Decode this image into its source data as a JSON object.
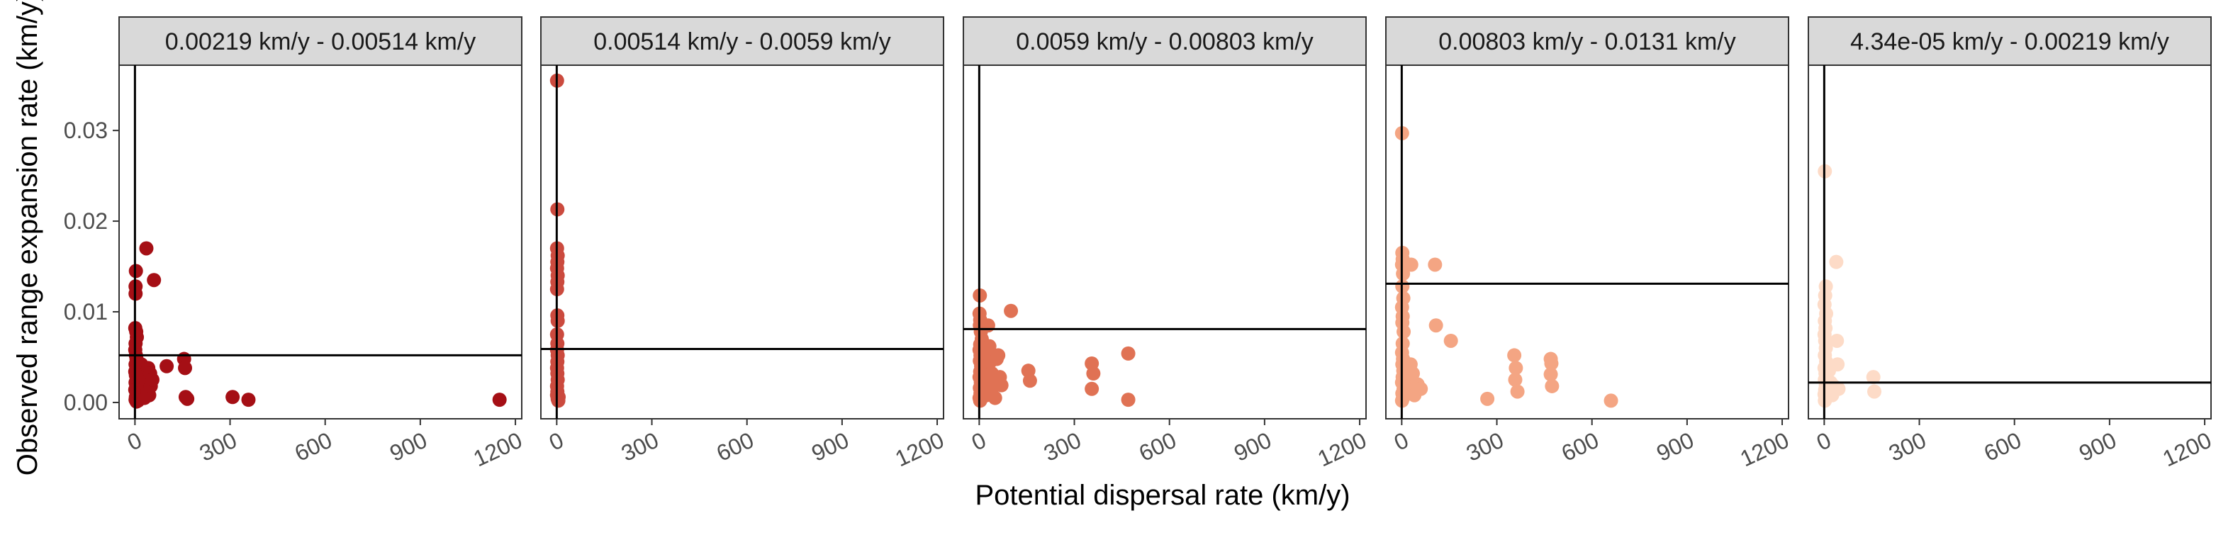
{
  "chart_data": {
    "type": "scatter",
    "xlabel": "Potential dispersal rate (km/y)",
    "ylabel": "Observed range expansion rate (km/y)",
    "x_ticks": [
      0,
      300,
      600,
      900,
      1200
    ],
    "y_ticks": [
      0.0,
      0.01,
      0.02,
      0.03
    ],
    "y_tick_labels": [
      "0.00",
      "0.01",
      "0.02",
      "0.03"
    ],
    "xlim": [
      -50,
      1220
    ],
    "ylim": [
      -0.0018,
      0.0372
    ],
    "grid": false,
    "vertical_reference_line_x": 0,
    "panels": [
      {
        "label": "0.00219 km/y - 0.00514 km/y",
        "color": "#A50F15",
        "hline": 0.0052,
        "points": [
          [
            3,
            0.0145
          ],
          [
            2,
            0.0128
          ],
          [
            2,
            0.012
          ],
          [
            1,
            0.0082
          ],
          [
            4,
            0.0078
          ],
          [
            6,
            0.0072
          ],
          [
            2,
            0.0065
          ],
          [
            1,
            0.0058
          ],
          [
            3,
            0.0052
          ],
          [
            5,
            0.0048
          ],
          [
            2,
            0.0042
          ],
          [
            8,
            0.0038
          ],
          [
            1,
            0.0034
          ],
          [
            3,
            0.003
          ],
          [
            6,
            0.0026
          ],
          [
            2,
            0.0022
          ],
          [
            4,
            0.0018
          ],
          [
            1,
            0.0014
          ],
          [
            7,
            0.001
          ],
          [
            3,
            0.0006
          ],
          [
            2,
            0.0003
          ],
          [
            5,
            0.0001
          ],
          [
            10,
            0.0002
          ],
          [
            12,
            0.0008
          ],
          [
            18,
            0.0035
          ],
          [
            20,
            0.0042
          ],
          [
            25,
            0.003
          ],
          [
            28,
            0.0015
          ],
          [
            30,
            0.0005
          ],
          [
            35,
            0.0022
          ],
          [
            38,
            0.0028
          ],
          [
            40,
            0.0012
          ],
          [
            42,
            0.0038
          ],
          [
            45,
            0.0008
          ],
          [
            48,
            0.0032
          ],
          [
            50,
            0.0018
          ],
          [
            55,
            0.0025
          ],
          [
            60,
            0.0135
          ],
          [
            36,
            0.017
          ],
          [
            100,
            0.004
          ],
          [
            155,
            0.0048
          ],
          [
            158,
            0.0038
          ],
          [
            160,
            0.0006
          ],
          [
            165,
            0.0004
          ],
          [
            308,
            0.0006
          ],
          [
            358,
            0.0003
          ],
          [
            1150,
            0.0003
          ]
        ]
      },
      {
        "label": "0.00514 km/y - 0.0059 km/y",
        "color": "#CB4A3E",
        "hline": 0.0059,
        "points": [
          [
            1,
            0.0355
          ],
          [
            2,
            0.0213
          ],
          [
            1,
            0.017
          ],
          [
            3,
            0.0162
          ],
          [
            2,
            0.0155
          ],
          [
            1,
            0.0148
          ],
          [
            3,
            0.014
          ],
          [
            2,
            0.0133
          ],
          [
            1,
            0.0125
          ],
          [
            2,
            0.0096
          ],
          [
            3,
            0.009
          ],
          [
            1,
            0.0075
          ],
          [
            2,
            0.0065
          ],
          [
            1,
            0.0058
          ],
          [
            3,
            0.0052
          ],
          [
            2,
            0.0045
          ],
          [
            1,
            0.0038
          ],
          [
            2,
            0.0032
          ],
          [
            3,
            0.0025
          ],
          [
            1,
            0.0018
          ],
          [
            2,
            0.0012
          ],
          [
            1,
            0.0008
          ],
          [
            3,
            0.0004
          ],
          [
            5,
            0.0002
          ],
          [
            6,
            0.0006
          ]
        ]
      },
      {
        "label": "0.0059 km/y - 0.00803 km/y",
        "color": "#E07254",
        "hline": 0.0081,
        "points": [
          [
            2,
            0.0118
          ],
          [
            1,
            0.0098
          ],
          [
            3,
            0.0091
          ],
          [
            2,
            0.0085
          ],
          [
            5,
            0.0078
          ],
          [
            8,
            0.007
          ],
          [
            3,
            0.0064
          ],
          [
            1,
            0.0058
          ],
          [
            4,
            0.0052
          ],
          [
            2,
            0.0046
          ],
          [
            6,
            0.004
          ],
          [
            3,
            0.0034
          ],
          [
            1,
            0.0028
          ],
          [
            5,
            0.0022
          ],
          [
            2,
            0.0016
          ],
          [
            4,
            0.001
          ],
          [
            1,
            0.0005
          ],
          [
            3,
            0.0002
          ],
          [
            12,
            0.0012
          ],
          [
            15,
            0.0025
          ],
          [
            18,
            0.0055
          ],
          [
            20,
            0.004
          ],
          [
            22,
            0.0008
          ],
          [
            25,
            0.003
          ],
          [
            28,
            0.0085
          ],
          [
            30,
            0.0015
          ],
          [
            32,
            0.0062
          ],
          [
            35,
            0.0045
          ],
          [
            38,
            0.0022
          ],
          [
            40,
            0.0032
          ],
          [
            45,
            0.0018
          ],
          [
            50,
            0.0005
          ],
          [
            55,
            0.0048
          ],
          [
            60,
            0.0052
          ],
          [
            65,
            0.0028
          ],
          [
            70,
            0.0019
          ],
          [
            100,
            0.0101
          ],
          [
            155,
            0.0035
          ],
          [
            160,
            0.0024
          ],
          [
            355,
            0.0043
          ],
          [
            360,
            0.0032
          ],
          [
            355,
            0.0015
          ],
          [
            470,
            0.0054
          ],
          [
            470,
            0.0003
          ]
        ]
      },
      {
        "label": "0.00803 km/y - 0.0131 km/y",
        "color": "#F4A583",
        "hline": 0.0131,
        "points": [
          [
            1,
            0.0297
          ],
          [
            2,
            0.0165
          ],
          [
            3,
            0.0158
          ],
          [
            1,
            0.0152
          ],
          [
            4,
            0.0142
          ],
          [
            2,
            0.0128
          ],
          [
            5,
            0.0115
          ],
          [
            1,
            0.0105
          ],
          [
            3,
            0.0095
          ],
          [
            2,
            0.0088
          ],
          [
            6,
            0.0078
          ],
          [
            3,
            0.0065
          ],
          [
            1,
            0.0055
          ],
          [
            4,
            0.0048
          ],
          [
            2,
            0.0042
          ],
          [
            5,
            0.0035
          ],
          [
            3,
            0.0028
          ],
          [
            1,
            0.0022
          ],
          [
            6,
            0.0015
          ],
          [
            2,
            0.001
          ],
          [
            4,
            0.0005
          ],
          [
            1,
            0.0002
          ],
          [
            15,
            0.0012
          ],
          [
            20,
            0.0025
          ],
          [
            25,
            0.0018
          ],
          [
            28,
            0.0042
          ],
          [
            30,
            0.0152
          ],
          [
            35,
            0.0032
          ],
          [
            40,
            0.0008
          ],
          [
            50,
            0.002
          ],
          [
            60,
            0.0015
          ],
          [
            105,
            0.0152
          ],
          [
            108,
            0.0085
          ],
          [
            155,
            0.0068
          ],
          [
            270,
            0.0004
          ],
          [
            355,
            0.0052
          ],
          [
            360,
            0.0038
          ],
          [
            358,
            0.0025
          ],
          [
            365,
            0.0012
          ],
          [
            470,
            0.0048
          ],
          [
            472,
            0.0043
          ],
          [
            470,
            0.0031
          ],
          [
            474,
            0.0018
          ],
          [
            660,
            0.0002
          ]
        ]
      },
      {
        "label": "4.34e-05 km/y - 0.00219 km/y",
        "color": "#FDDBC7",
        "hline": 0.0022,
        "points": [
          [
            2,
            0.0255
          ],
          [
            5,
            0.0128
          ],
          [
            3,
            0.0118
          ],
          [
            1,
            0.0108
          ],
          [
            6,
            0.0098
          ],
          [
            2,
            0.009
          ],
          [
            4,
            0.0082
          ],
          [
            1,
            0.0075
          ],
          [
            3,
            0.0068
          ],
          [
            5,
            0.006
          ],
          [
            2,
            0.0052
          ],
          [
            6,
            0.0045
          ],
          [
            1,
            0.0038
          ],
          [
            4,
            0.0032
          ],
          [
            2,
            0.0025
          ],
          [
            5,
            0.0019
          ],
          [
            3,
            0.0014
          ],
          [
            1,
            0.0009
          ],
          [
            4,
            0.0005
          ],
          [
            2,
            0.0002
          ],
          [
            10,
            0.0012
          ],
          [
            15,
            0.0035
          ],
          [
            20,
            0.0022
          ],
          [
            25,
            0.0008
          ],
          [
            30,
            0.0018
          ],
          [
            38,
            0.0155
          ],
          [
            40,
            0.0068
          ],
          [
            42,
            0.0042
          ],
          [
            45,
            0.0015
          ],
          [
            155,
            0.0028
          ],
          [
            158,
            0.0012
          ]
        ]
      }
    ]
  }
}
